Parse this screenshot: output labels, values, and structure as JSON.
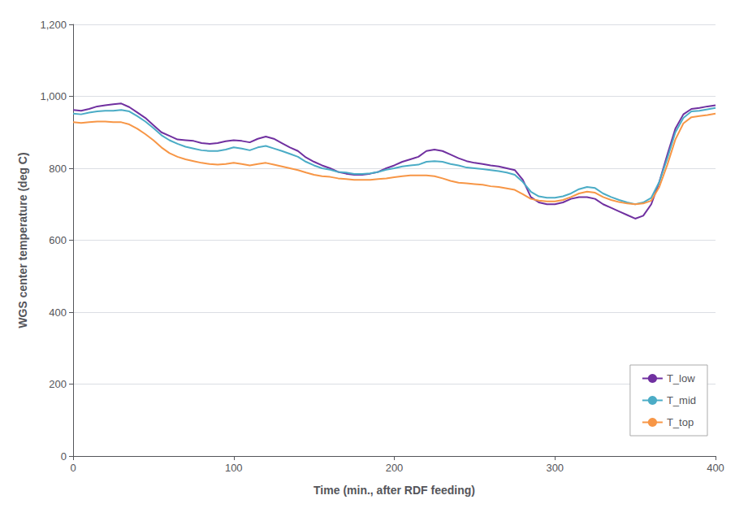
{
  "chart_data": {
    "type": "line",
    "xlabel": "Time (min., after RDF feeding)",
    "ylabel": "WGS center temperature (deg C)",
    "xlim": [
      0,
      400
    ],
    "ylim": [
      0,
      1200
    ],
    "xticks": [
      0,
      100,
      200,
      300,
      400
    ],
    "yticks": [
      0,
      200,
      400,
      600,
      800,
      1000,
      1200
    ],
    "grid": true,
    "legend": "lower right",
    "x": [
      0,
      5,
      10,
      15,
      20,
      25,
      30,
      35,
      40,
      45,
      50,
      55,
      60,
      65,
      70,
      75,
      80,
      85,
      90,
      95,
      100,
      105,
      110,
      115,
      120,
      125,
      130,
      135,
      140,
      145,
      150,
      155,
      160,
      165,
      170,
      175,
      180,
      185,
      190,
      195,
      200,
      205,
      210,
      215,
      220,
      225,
      230,
      235,
      240,
      245,
      250,
      255,
      260,
      265,
      270,
      275,
      280,
      285,
      290,
      295,
      300,
      305,
      310,
      315,
      320,
      325,
      330,
      335,
      340,
      345,
      350,
      355,
      360,
      365,
      370,
      375,
      380,
      385,
      390,
      395,
      400
    ],
    "series": [
      {
        "name": "T_low",
        "color": "#7030A0",
        "values": [
          962,
          960,
          965,
          972,
          975,
          978,
          980,
          970,
          955,
          940,
          920,
          900,
          890,
          880,
          878,
          876,
          870,
          868,
          870,
          875,
          878,
          876,
          872,
          882,
          888,
          882,
          870,
          858,
          848,
          830,
          818,
          808,
          800,
          790,
          785,
          782,
          782,
          785,
          790,
          800,
          808,
          818,
          825,
          832,
          848,
          852,
          848,
          838,
          828,
          820,
          815,
          812,
          808,
          805,
          800,
          795,
          768,
          720,
          705,
          700,
          700,
          705,
          715,
          720,
          720,
          715,
          700,
          690,
          680,
          670,
          660,
          668,
          700,
          762,
          838,
          910,
          950,
          965,
          968,
          972,
          975
        ]
      },
      {
        "name": "T_mid",
        "color": "#4BACC6",
        "values": [
          952,
          950,
          955,
          958,
          960,
          960,
          962,
          958,
          945,
          930,
          912,
          892,
          878,
          868,
          860,
          855,
          850,
          848,
          848,
          852,
          858,
          855,
          850,
          858,
          862,
          855,
          848,
          840,
          832,
          818,
          808,
          800,
          796,
          790,
          788,
          784,
          784,
          786,
          790,
          796,
          800,
          805,
          808,
          810,
          818,
          820,
          818,
          812,
          808,
          802,
          800,
          798,
          795,
          792,
          788,
          782,
          762,
          735,
          722,
          718,
          718,
          722,
          730,
          742,
          748,
          745,
          730,
          720,
          712,
          705,
          700,
          705,
          718,
          762,
          828,
          900,
          940,
          958,
          960,
          964,
          968
        ]
      },
      {
        "name": "T_top",
        "color": "#F79646",
        "values": [
          928,
          926,
          928,
          930,
          930,
          928,
          928,
          922,
          910,
          895,
          878,
          858,
          842,
          832,
          825,
          820,
          815,
          812,
          810,
          812,
          815,
          812,
          808,
          812,
          815,
          810,
          805,
          800,
          795,
          788,
          782,
          778,
          776,
          772,
          770,
          768,
          768,
          768,
          770,
          772,
          775,
          778,
          780,
          780,
          780,
          778,
          772,
          765,
          760,
          758,
          756,
          754,
          750,
          748,
          744,
          740,
          728,
          715,
          710,
          708,
          708,
          712,
          720,
          730,
          735,
          732,
          720,
          712,
          706,
          702,
          700,
          702,
          710,
          748,
          810,
          880,
          925,
          942,
          945,
          948,
          952
        ]
      }
    ]
  }
}
